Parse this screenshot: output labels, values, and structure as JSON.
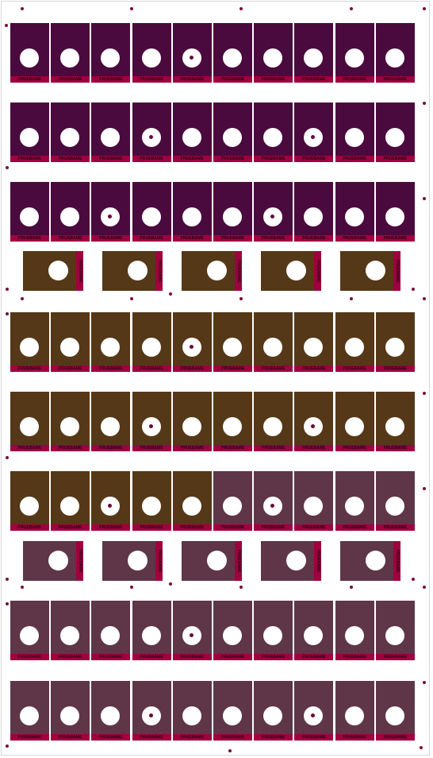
{
  "label_text": "PRUEBAME",
  "colors": {
    "purple": "#4a0a3e",
    "brown": "#553818",
    "mauve": "#5e3648",
    "strip": "#a0003f",
    "marker": "#7a0a3c"
  },
  "card_rows": [
    {
      "colors": [
        "purple",
        "purple",
        "purple",
        "purple",
        "purple",
        "purple",
        "purple",
        "purple",
        "purple",
        "purple"
      ],
      "dots": [
        4
      ]
    },
    {
      "colors": [
        "purple",
        "purple",
        "purple",
        "purple",
        "purple",
        "purple",
        "purple",
        "purple",
        "purple",
        "purple"
      ],
      "dots": [
        3,
        7
      ]
    },
    {
      "colors": [
        "purple",
        "purple",
        "purple",
        "purple",
        "purple",
        "purple",
        "purple",
        "purple",
        "purple",
        "purple"
      ],
      "dots": [
        2,
        6
      ]
    },
    {
      "colors": [
        "brown",
        "brown",
        "brown",
        "brown",
        "brown",
        "brown",
        "brown",
        "brown",
        "brown",
        "brown"
      ],
      "dots": [
        4
      ]
    },
    {
      "colors": [
        "brown",
        "brown",
        "brown",
        "brown",
        "brown",
        "brown",
        "brown",
        "brown",
        "brown",
        "brown"
      ],
      "dots": [
        3,
        7
      ]
    },
    {
      "colors": [
        "brown",
        "brown",
        "brown",
        "brown",
        "brown",
        "mauve",
        "mauve",
        "mauve",
        "mauve",
        "mauve"
      ],
      "dots": [
        2,
        6
      ]
    },
    {
      "colors": [
        "mauve",
        "mauve",
        "mauve",
        "mauve",
        "mauve",
        "mauve",
        "mauve",
        "mauve",
        "mauve",
        "mauve"
      ],
      "dots": [
        4
      ]
    },
    {
      "colors": [
        "mauve",
        "mauve",
        "mauve",
        "mauve",
        "mauve",
        "mauve",
        "mauve",
        "mauve",
        "mauve",
        "mauve"
      ],
      "dots": [
        3,
        7
      ]
    }
  ],
  "tab_rows": [
    {
      "color": "brown",
      "count": 5
    },
    {
      "color": "mauve",
      "count": 5
    }
  ]
}
